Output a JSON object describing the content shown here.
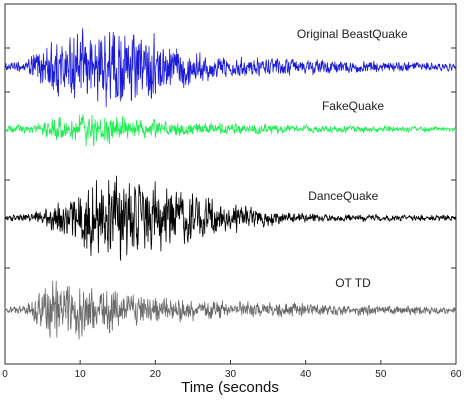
{
  "chart_data": {
    "type": "line",
    "xlabel": "Time (seconds",
    "xlim": [
      0,
      60
    ],
    "x_ticks": [
      0,
      10,
      20,
      30,
      40,
      50,
      60
    ],
    "grid": false,
    "legend": "none",
    "series": [
      {
        "name": "Original BeastQuake",
        "color": "#1a1ad6",
        "envelope_t": [
          0,
          3,
          4,
          6,
          8,
          10,
          12,
          14,
          16,
          18,
          20,
          22,
          24,
          26,
          30,
          35,
          40,
          45,
          50,
          55,
          60
        ],
        "envelope_amp": [
          0.08,
          0.15,
          0.45,
          0.7,
          0.75,
          0.85,
          0.85,
          1.0,
          0.95,
          0.9,
          0.8,
          0.6,
          0.45,
          0.35,
          0.22,
          0.22,
          0.2,
          0.16,
          0.13,
          0.12,
          0.1
        ]
      },
      {
        "name": "FakeQuake",
        "color": "#22ee55",
        "envelope_t": [
          0,
          4,
          6,
          8,
          10,
          14,
          18,
          22,
          26,
          30,
          40,
          50,
          60
        ],
        "envelope_amp": [
          0.2,
          0.22,
          0.5,
          0.7,
          0.9,
          0.75,
          0.5,
          0.4,
          0.35,
          0.3,
          0.2,
          0.18,
          0.14
        ]
      },
      {
        "name": "DanceQuake",
        "color": "#000000",
        "envelope_t": [
          0,
          3,
          5,
          7,
          9,
          11,
          13,
          15,
          17,
          19,
          21,
          23,
          25,
          27,
          29,
          32,
          35,
          38,
          45,
          60
        ],
        "envelope_amp": [
          0.05,
          0.08,
          0.2,
          0.35,
          0.55,
          0.8,
          1.0,
          1.0,
          0.9,
          0.9,
          0.7,
          0.6,
          0.55,
          0.45,
          0.35,
          0.25,
          0.18,
          0.12,
          0.08,
          0.06
        ]
      },
      {
        "name": "OT TD",
        "color": "#6b6b6b",
        "envelope_t": [
          0,
          3,
          4,
          6,
          8,
          10,
          12,
          14,
          16,
          18,
          20,
          22,
          25,
          30,
          40,
          50,
          60
        ],
        "envelope_amp": [
          0.1,
          0.15,
          0.5,
          0.9,
          0.85,
          0.85,
          0.75,
          0.65,
          0.55,
          0.45,
          0.4,
          0.35,
          0.3,
          0.25,
          0.2,
          0.15,
          0.12
        ]
      }
    ]
  }
}
